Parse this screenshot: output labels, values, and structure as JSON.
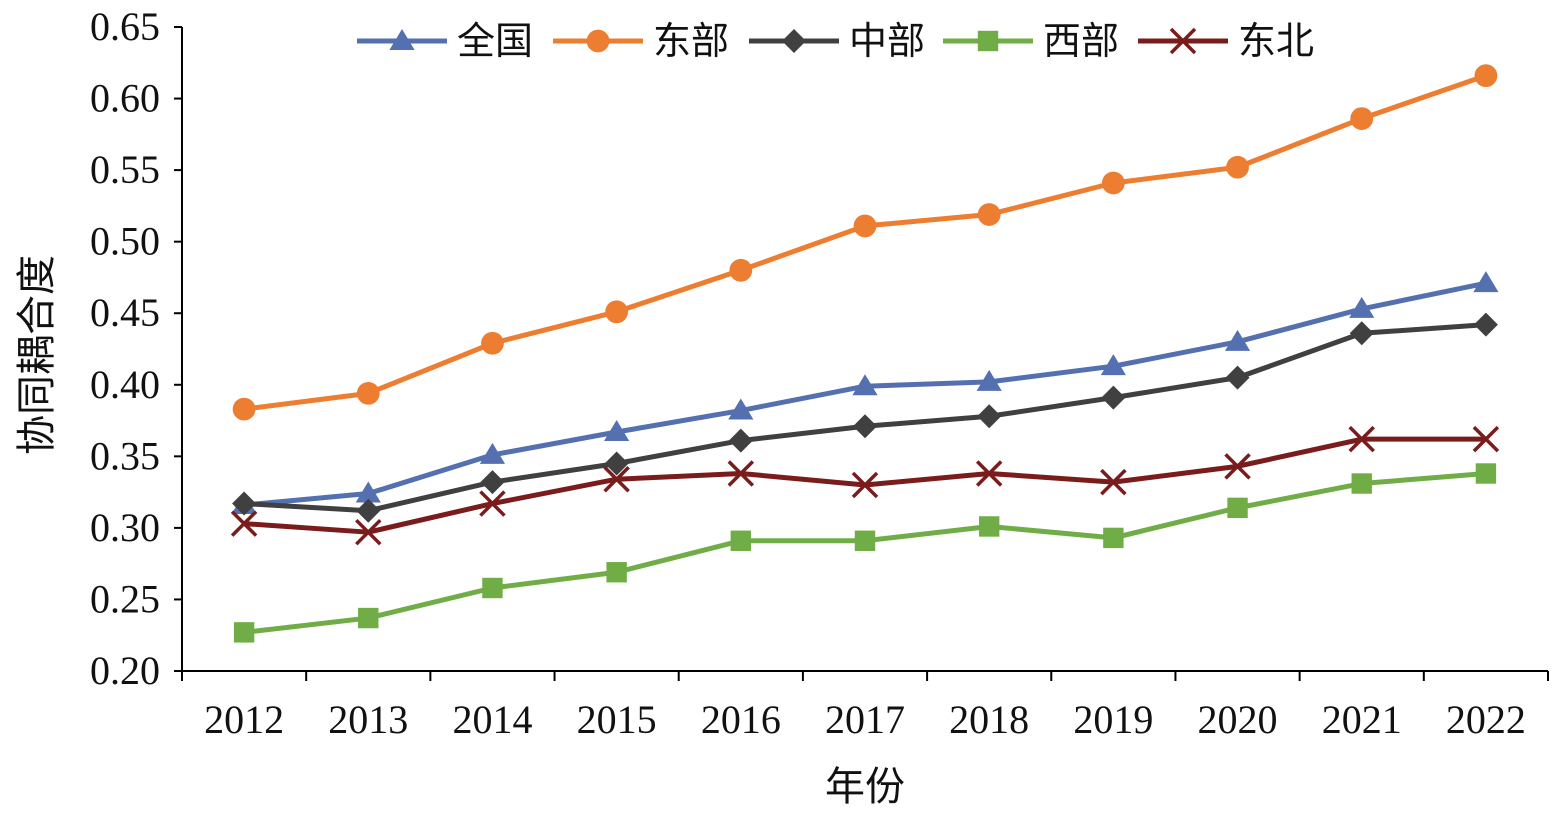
{
  "chart_data": {
    "type": "line",
    "title": "",
    "xlabel": "年份",
    "ylabel": "协同耦合度",
    "ylim": [
      0.2,
      0.65
    ],
    "yticks": [
      "0.20",
      "0.25",
      "0.30",
      "0.35",
      "0.40",
      "0.45",
      "0.50",
      "0.55",
      "0.60",
      "0.65"
    ],
    "categories": [
      "2012",
      "2013",
      "2014",
      "2015",
      "2016",
      "2017",
      "2018",
      "2019",
      "2020",
      "2021",
      "2022"
    ],
    "grid": false,
    "legend_position": "top",
    "series": [
      {
        "name": "全国",
        "color": "#5470b0",
        "marker": "triangle",
        "values": [
          0.316,
          0.324,
          0.351,
          0.367,
          0.382,
          0.399,
          0.402,
          0.413,
          0.43,
          0.453,
          0.471
        ]
      },
      {
        "name": "东部",
        "color": "#ed7d31",
        "marker": "circle",
        "values": [
          0.383,
          0.394,
          0.429,
          0.451,
          0.48,
          0.511,
          0.519,
          0.541,
          0.552,
          0.586,
          0.616
        ]
      },
      {
        "name": "中部",
        "color": "#404040",
        "marker": "diamond",
        "values": [
          0.317,
          0.312,
          0.332,
          0.345,
          0.361,
          0.371,
          0.378,
          0.391,
          0.405,
          0.436,
          0.442
        ]
      },
      {
        "name": "西部",
        "color": "#70ad47",
        "marker": "square",
        "values": [
          0.227,
          0.237,
          0.258,
          0.269,
          0.291,
          0.291,
          0.301,
          0.293,
          0.314,
          0.331,
          0.338
        ]
      },
      {
        "name": "东北",
        "color": "#7b1c1c",
        "marker": "x",
        "values": [
          0.303,
          0.297,
          0.317,
          0.334,
          0.338,
          0.33,
          0.338,
          0.332,
          0.343,
          0.362,
          0.362
        ]
      }
    ]
  }
}
